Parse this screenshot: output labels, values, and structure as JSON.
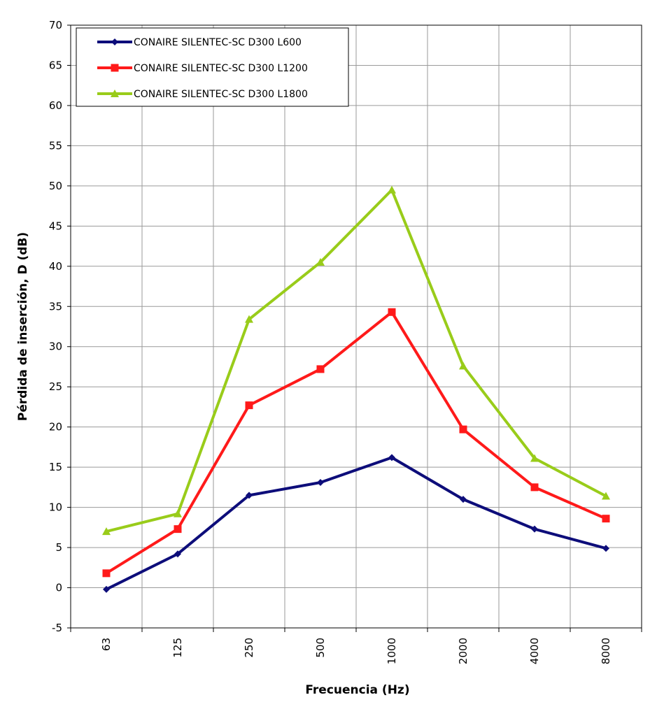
{
  "chart_data": {
    "type": "line",
    "title": "",
    "xlabel": "Frecuencia (Hz)",
    "ylabel": "Pérdida de inserción, D (dB)",
    "categories": [
      "63",
      "125",
      "250",
      "500",
      "1000",
      "2000",
      "4000",
      "8000"
    ],
    "ylim": [
      -5,
      70
    ],
    "yticks": [
      -5,
      0,
      5,
      10,
      15,
      20,
      25,
      30,
      35,
      40,
      45,
      50,
      55,
      60,
      65,
      70
    ],
    "grid": true,
    "legend_position": "top-left",
    "series": [
      {
        "name": "CONAIRE SILENTEC-SC D300 L600",
        "color": "#0d0d7a",
        "marker": "diamond",
        "values": [
          -0.2,
          4.2,
          11.5,
          13.1,
          16.2,
          11.0,
          7.3,
          4.9
        ]
      },
      {
        "name": "CONAIRE SILENTEC-SC D300 L1200",
        "color": "#ff1a1a",
        "marker": "square",
        "values": [
          1.8,
          7.3,
          22.7,
          27.2,
          34.3,
          19.7,
          12.5,
          8.6
        ]
      },
      {
        "name": "CONAIRE SILENTEC-SC D300 L1800",
        "color": "#99cc1a",
        "marker": "triangle",
        "values": [
          7.0,
          9.2,
          33.4,
          40.5,
          49.5,
          27.6,
          16.1,
          11.4
        ]
      }
    ]
  }
}
